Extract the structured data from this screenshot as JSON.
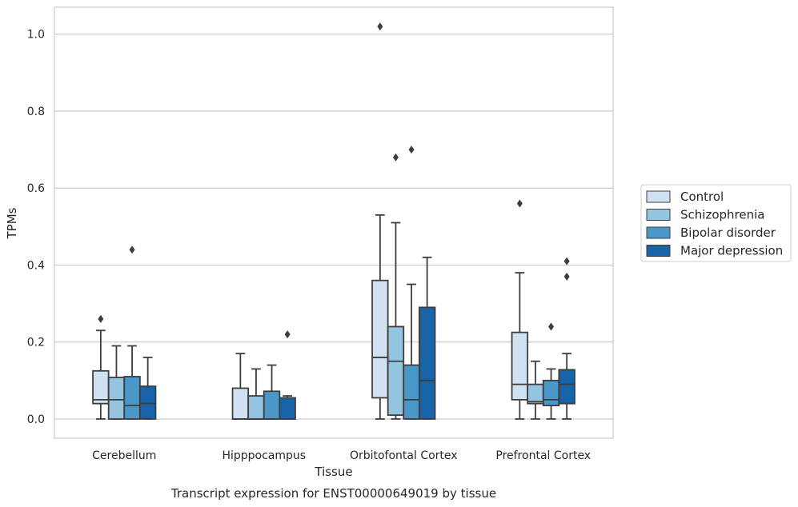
{
  "chart_data": {
    "type": "boxplot",
    "title": "Transcript expression for ENST00000649019 by tissue",
    "xlabel": "Tissue",
    "ylabel": "TPMs",
    "ylim": [
      -0.05,
      1.07
    ],
    "yticks": [
      "0.0",
      "0.2",
      "0.4",
      "0.6",
      "0.8",
      "1.0"
    ],
    "grid": true,
    "legend_position": "right",
    "categories": [
      "Cerebellum",
      "Hipppocampus",
      "Orbitofontal Cortex",
      "Prefrontal Cortex"
    ],
    "series": [
      {
        "name": "Control",
        "color": "#d0e1f2",
        "boxes": [
          {
            "whislo": 0.0,
            "q1": 0.04,
            "med": 0.05,
            "q3": 0.125,
            "whishi": 0.23,
            "fliers": [
              0.26
            ]
          },
          {
            "whislo": 0.0,
            "q1": 0.0,
            "med": 0.0,
            "q3": 0.08,
            "whishi": 0.17,
            "fliers": []
          },
          {
            "whislo": 0.0,
            "q1": 0.055,
            "med": 0.16,
            "q3": 0.36,
            "whishi": 0.53,
            "fliers": [
              1.02
            ]
          },
          {
            "whislo": 0.0,
            "q1": 0.05,
            "med": 0.09,
            "q3": 0.225,
            "whishi": 0.38,
            "fliers": [
              0.56
            ]
          }
        ]
      },
      {
        "name": "Schizophrenia",
        "color": "#94c4df",
        "boxes": [
          {
            "whislo": 0.0,
            "q1": 0.0,
            "med": 0.05,
            "q3": 0.108,
            "whishi": 0.19,
            "fliers": []
          },
          {
            "whislo": 0.0,
            "q1": 0.0,
            "med": 0.0,
            "q3": 0.06,
            "whishi": 0.13,
            "fliers": []
          },
          {
            "whislo": 0.0,
            "q1": 0.01,
            "med": 0.15,
            "q3": 0.24,
            "whishi": 0.51,
            "fliers": [
              0.68
            ]
          },
          {
            "whislo": 0.0,
            "q1": 0.04,
            "med": 0.045,
            "q3": 0.09,
            "whishi": 0.15,
            "fliers": []
          }
        ]
      },
      {
        "name": "Bipolar disorder",
        "color": "#4a98c9",
        "boxes": [
          {
            "whislo": 0.0,
            "q1": 0.0,
            "med": 0.035,
            "q3": 0.11,
            "whishi": 0.19,
            "fliers": [
              0.44
            ]
          },
          {
            "whislo": 0.0,
            "q1": 0.0,
            "med": 0.0,
            "q3": 0.072,
            "whishi": 0.14,
            "fliers": []
          },
          {
            "whislo": 0.0,
            "q1": 0.0,
            "med": 0.05,
            "q3": 0.14,
            "whishi": 0.35,
            "fliers": [
              0.7
            ]
          },
          {
            "whislo": 0.0,
            "q1": 0.035,
            "med": 0.05,
            "q3": 0.1,
            "whishi": 0.13,
            "fliers": [
              0.24
            ]
          }
        ]
      },
      {
        "name": "Major depression",
        "color": "#1764ab",
        "boxes": [
          {
            "whislo": 0.0,
            "q1": 0.0,
            "med": 0.04,
            "q3": 0.085,
            "whishi": 0.16,
            "fliers": []
          },
          {
            "whislo": 0.0,
            "q1": 0.0,
            "med": 0.0,
            "q3": 0.055,
            "whishi": 0.06,
            "fliers": [
              0.22
            ]
          },
          {
            "whislo": 0.0,
            "q1": 0.0,
            "med": 0.1,
            "q3": 0.29,
            "whishi": 0.42,
            "fliers": []
          },
          {
            "whislo": 0.0,
            "q1": 0.04,
            "med": 0.09,
            "q3": 0.128,
            "whishi": 0.17,
            "fliers": [
              0.37,
              0.41
            ]
          }
        ]
      }
    ]
  }
}
